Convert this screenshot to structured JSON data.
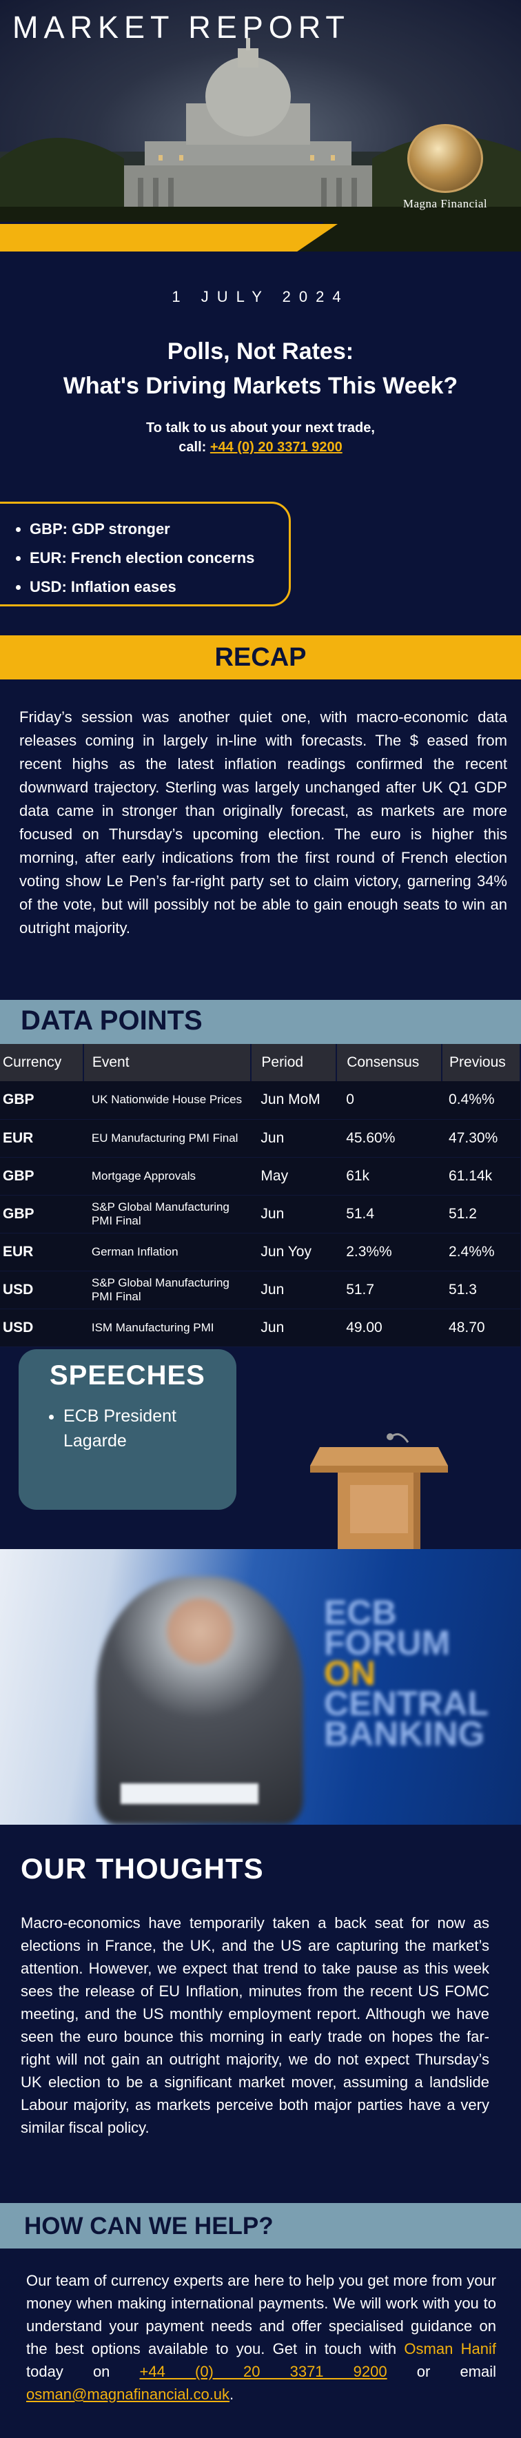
{
  "header": {
    "title": "MARKET REPORT",
    "brand": "Magna Financial"
  },
  "date": "1 JULY 2024",
  "headline": {
    "line1": "Polls, Not Rates:",
    "line2": "What's Driving Markets This Week?"
  },
  "contact": {
    "prompt": "To talk to us about your next trade,",
    "call_label": "call:",
    "phone": "+44 (0) 20 3371 9200"
  },
  "highlights": [
    "GBP: GDP stronger",
    "EUR: French election concerns",
    "USD: Inflation eases"
  ],
  "recap": {
    "title": "RECAP",
    "body": "Friday’s session was another quiet one, with macro-economic data releases coming in largely in-line with forecasts. The $ eased from recent highs as the latest inflation readings confirmed the recent downward trajectory. Sterling was largely unchanged after UK Q1 GDP data came in stronger than originally forecast, as markets are more focused on Thursday’s upcoming election. The euro is higher this morning, after early indications from the first round of French election voting show Le Pen’s far-right party set to claim victory, garnering 34% of the vote, but will possibly not be able to gain enough seats to win an outright majority."
  },
  "data_points": {
    "title": "DATA POINTS",
    "columns": [
      "Currency",
      "Event",
      "Period",
      "Consensus",
      "Previous"
    ],
    "rows": [
      {
        "currency": "GBP",
        "event": "UK Nationwide House Prices",
        "period": "Jun MoM",
        "consensus": "0",
        "previous": "0.4%%"
      },
      {
        "currency": "EUR",
        "event": "EU Manufacturing PMI Final",
        "period": "Jun",
        "consensus": "45.60%",
        "previous": "47.30%"
      },
      {
        "currency": "GBP",
        "event": "Mortgage Approvals",
        "period": "May",
        "consensus": "61k",
        "previous": "61.14k"
      },
      {
        "currency": "GBP",
        "event": "S&P Global Manufacturing PMI Final",
        "period": "Jun",
        "consensus": "51.4",
        "previous": "51.2"
      },
      {
        "currency": "EUR",
        "event": "German Inflation",
        "period": "Jun Yoy",
        "consensus": "2.3%%",
        "previous": "2.4%%"
      },
      {
        "currency": "USD",
        "event": "S&P Global Manufacturing PMI Final",
        "period": "Jun",
        "consensus": "51.7",
        "previous": "51.3"
      },
      {
        "currency": "USD",
        "event": "ISM Manufacturing PMI",
        "period": "Jun",
        "consensus": "49.00",
        "previous": "48.70"
      }
    ]
  },
  "speeches": {
    "title": "SPEECHES",
    "items": [
      "ECB President Lagarde"
    ]
  },
  "photo": {
    "banner_line1": "ECB",
    "banner_line2": "FORUM",
    "banner_line3_on": "ON",
    "banner_line3": " CENTRAL",
    "banner_line4": "BANKING"
  },
  "thoughts": {
    "title": "OUR THOUGHTS",
    "body": "Macro-economics have temporarily taken a back seat for now as elections in France, the UK, and the US are capturing the market’s attention. However, we expect that trend to take pause as this week sees the release of EU Inflation, minutes from the recent US FOMC meeting, and the US monthly employment report. Although we have seen the euro bounce this morning in early trade on hopes the far-right will not gain an outright majority, we do not expect Thursday’s UK election to be a significant market mover, assuming a landslide Labour majority, as markets perceive both major parties have a very similar fiscal policy."
  },
  "help": {
    "title": "HOW CAN WE HELP?",
    "body_start": "Our team of currency experts are here to help you get more from your money when making international payments. We will work with you to understand your payment needs and offer specialised guidance on the best options available to you. Get in touch with ",
    "contact_name": "Osman Hanif",
    "body_mid": " today on ",
    "phone": "+44 (0) 20 3371 9200",
    "body_or": " or email ",
    "email": "osman@magnafinancial.co.uk",
    "body_end": "."
  },
  "colors": {
    "navy": "#0b1338",
    "gold": "#f3b20e",
    "steel_blue": "#7b9fb1",
    "teal_box": "#3a6071"
  }
}
